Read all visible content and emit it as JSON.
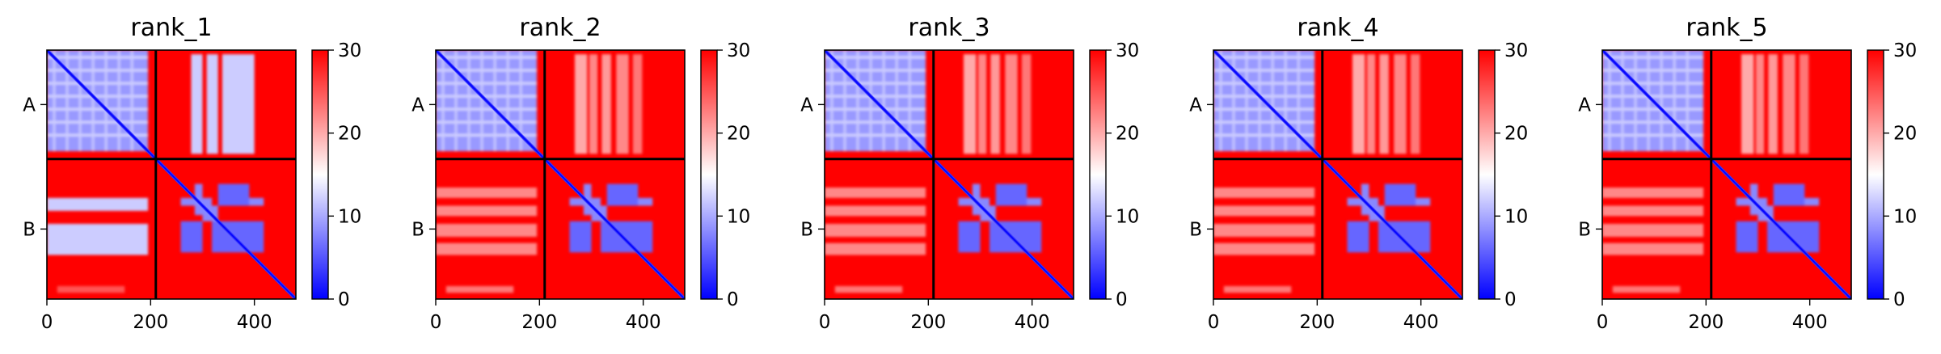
{
  "chart_data": {
    "type": "heatmap",
    "colormap": {
      "name": "bwr",
      "low_color": "#0000ff",
      "mid_color": "#ffffff",
      "high_color": "#ff0000",
      "vmin": 0,
      "vmax": 30,
      "ticks": [
        "0",
        "10",
        "20",
        "30"
      ]
    },
    "x_ticks": [
      "0",
      "200",
      "400"
    ],
    "x_tick_values": [
      0,
      200,
      400
    ],
    "xlim": [
      0,
      480
    ],
    "chain_boundary": 210,
    "chain_labels": [
      "A",
      "B"
    ],
    "panels": [
      {
        "title": "rank_1",
        "inter_chain_contrast": "strong"
      },
      {
        "title": "rank_2",
        "inter_chain_contrast": "weak"
      },
      {
        "title": "rank_3",
        "inter_chain_contrast": "weak"
      },
      {
        "title": "rank_4",
        "inter_chain_contrast": "weak"
      },
      {
        "title": "rank_5",
        "inter_chain_contrast": "weak"
      }
    ]
  }
}
